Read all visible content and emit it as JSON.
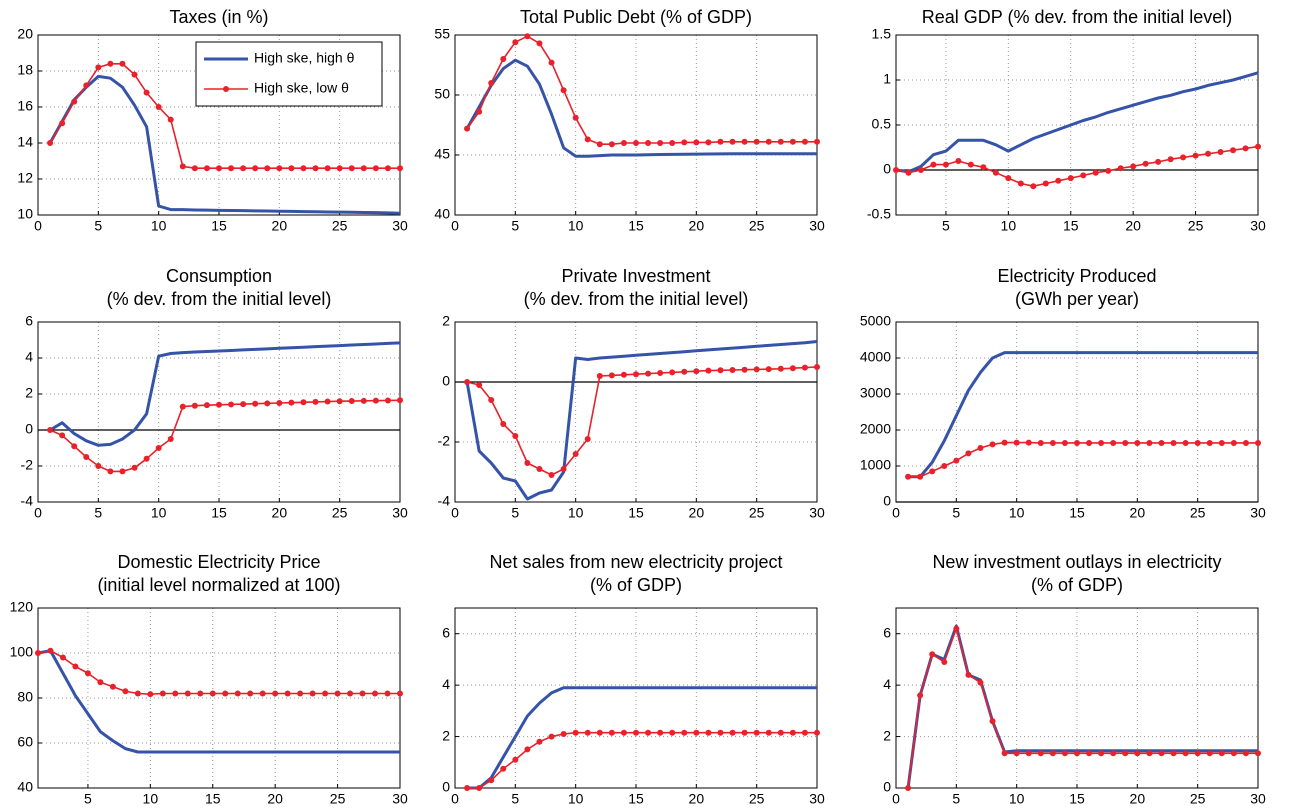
{
  "chart_data": [
    {
      "type": "line",
      "title": "Taxes (in %)",
      "xlim": [
        0,
        30
      ],
      "xticks": [
        0,
        5,
        10,
        15,
        20,
        25,
        30
      ],
      "ylim": [
        10,
        20
      ],
      "yticks": [
        10,
        12,
        14,
        16,
        18,
        20
      ],
      "grid": true,
      "legend": "upper right",
      "x": [
        1,
        2,
        3,
        4,
        5,
        6,
        7,
        8,
        9,
        10,
        11,
        12,
        13,
        14,
        15,
        16,
        17,
        18,
        19,
        20,
        21,
        22,
        23,
        24,
        25,
        26,
        27,
        28,
        29,
        30
      ],
      "series": [
        {
          "name": "High ske, high θ",
          "color": "#3553a8",
          "values": [
            14,
            15.2,
            16.4,
            17.1,
            17.7,
            17.6,
            17.1,
            16.1,
            14.9,
            10.5,
            10.3,
            10.3,
            10.28,
            10.27,
            10.26,
            10.25,
            10.24,
            10.23,
            10.22,
            10.21,
            10.2,
            10.19,
            10.18,
            10.17,
            10.16,
            10.15,
            10.14,
            10.13,
            10.12,
            10.1
          ]
        },
        {
          "name": "High ske, low θ",
          "color": "#e8212a",
          "values": [
            14,
            15.1,
            16.3,
            17.2,
            18.2,
            18.4,
            18.4,
            17.8,
            16.8,
            16.0,
            15.3,
            12.7,
            12.6,
            12.6,
            12.6,
            12.6,
            12.6,
            12.6,
            12.6,
            12.6,
            12.6,
            12.6,
            12.6,
            12.6,
            12.6,
            12.6,
            12.6,
            12.6,
            12.6,
            12.6
          ]
        }
      ]
    },
    {
      "type": "line",
      "title": "Total Public Debt (% of GDP)",
      "xlim": [
        0,
        30
      ],
      "xticks": [
        0,
        5,
        10,
        15,
        20,
        25,
        30
      ],
      "ylim": [
        40,
        55
      ],
      "yticks": [
        40,
        45,
        50,
        55
      ],
      "grid": true,
      "x": [
        1,
        2,
        3,
        4,
        5,
        6,
        7,
        8,
        9,
        10,
        11,
        12,
        13,
        14,
        15,
        16,
        17,
        18,
        19,
        20,
        21,
        22,
        23,
        24,
        25,
        26,
        27,
        28,
        29,
        30
      ],
      "series": [
        {
          "color": "#3553a8",
          "values": [
            47.2,
            49,
            50.8,
            52.2,
            52.9,
            52.4,
            50.9,
            48.4,
            45.6,
            44.9,
            44.9,
            44.95,
            45,
            45,
            45,
            45.02,
            45.04,
            45.05,
            45.06,
            45.07,
            45.08,
            45.09,
            45.1,
            45.1,
            45.1,
            45.1,
            45.1,
            45.1,
            45.1,
            45.1
          ]
        },
        {
          "color": "#e8212a",
          "values": [
            47.2,
            48.6,
            51,
            53,
            54.4,
            54.9,
            54.3,
            52.7,
            50.4,
            48.1,
            46.3,
            45.9,
            45.9,
            46,
            46,
            46,
            46,
            46,
            46.05,
            46.05,
            46.05,
            46.1,
            46.1,
            46.1,
            46.1,
            46.1,
            46.1,
            46.1,
            46.1,
            46.1
          ]
        }
      ]
    },
    {
      "type": "line",
      "title": "Real GDP (% dev. from the initial level)",
      "xlim": [
        1,
        30
      ],
      "xticks": [
        5,
        10,
        15,
        20,
        25,
        30
      ],
      "ylim": [
        -0.5,
        1.5
      ],
      "yticks": [
        -0.5,
        0,
        0.5,
        1,
        1.5
      ],
      "grid": true,
      "zero_line": true,
      "x": [
        1,
        2,
        3,
        4,
        5,
        6,
        7,
        8,
        9,
        10,
        11,
        12,
        13,
        14,
        15,
        16,
        17,
        18,
        19,
        20,
        21,
        22,
        23,
        24,
        25,
        26,
        27,
        28,
        29,
        30
      ],
      "series": [
        {
          "color": "#3553a8",
          "values": [
            0,
            -0.02,
            0.04,
            0.17,
            0.21,
            0.33,
            0.33,
            0.33,
            0.28,
            0.21,
            0.28,
            0.35,
            0.4,
            0.45,
            0.5,
            0.55,
            0.59,
            0.64,
            0.68,
            0.72,
            0.76,
            0.8,
            0.83,
            0.87,
            0.9,
            0.94,
            0.97,
            1.0,
            1.04,
            1.08
          ]
        },
        {
          "color": "#e8212a",
          "values": [
            0,
            -0.03,
            0,
            0.06,
            0.06,
            0.1,
            0.06,
            0.03,
            -0.03,
            -0.09,
            -0.15,
            -0.18,
            -0.15,
            -0.12,
            -0.09,
            -0.06,
            -0.03,
            -0.01,
            0.02,
            0.04,
            0.07,
            0.09,
            0.12,
            0.14,
            0.16,
            0.18,
            0.2,
            0.22,
            0.24,
            0.26
          ]
        }
      ]
    },
    {
      "type": "line",
      "title": "Consumption",
      "subtitle": "(% dev. from the initial level)",
      "xlim": [
        0,
        30
      ],
      "xticks": [
        0,
        5,
        10,
        15,
        20,
        25,
        30
      ],
      "ylim": [
        -4,
        6
      ],
      "yticks": [
        -4,
        -2,
        0,
        2,
        4,
        6
      ],
      "grid": true,
      "zero_line": true,
      "x": [
        1,
        2,
        3,
        4,
        5,
        6,
        7,
        8,
        9,
        10,
        11,
        12,
        13,
        14,
        15,
        16,
        17,
        18,
        19,
        20,
        21,
        22,
        23,
        24,
        25,
        26,
        27,
        28,
        29,
        30
      ],
      "series": [
        {
          "color": "#3553a8",
          "values": [
            0,
            0.4,
            -0.2,
            -0.6,
            -0.85,
            -0.8,
            -0.5,
            0,
            0.9,
            4.1,
            4.25,
            4.3,
            4.33,
            4.36,
            4.39,
            4.42,
            4.45,
            4.48,
            4.51,
            4.54,
            4.57,
            4.6,
            4.63,
            4.66,
            4.69,
            4.72,
            4.75,
            4.78,
            4.81,
            4.84
          ]
        },
        {
          "color": "#e8212a",
          "values": [
            0,
            -0.3,
            -0.9,
            -1.5,
            -2.0,
            -2.3,
            -2.3,
            -2.1,
            -1.6,
            -1.0,
            -0.5,
            1.3,
            1.35,
            1.38,
            1.4,
            1.42,
            1.44,
            1.46,
            1.48,
            1.5,
            1.52,
            1.54,
            1.56,
            1.58,
            1.6,
            1.61,
            1.62,
            1.63,
            1.64,
            1.65
          ]
        }
      ]
    },
    {
      "type": "line",
      "title": "Private Investment",
      "subtitle": "(% dev. from the initial level)",
      "xlim": [
        0,
        30
      ],
      "xticks": [
        0,
        5,
        10,
        15,
        20,
        25,
        30
      ],
      "ylim": [
        -4,
        2
      ],
      "yticks": [
        -4,
        -2,
        0,
        2
      ],
      "grid": true,
      "zero_line": true,
      "x": [
        1,
        2,
        3,
        4,
        5,
        6,
        7,
        8,
        9,
        10,
        11,
        12,
        13,
        14,
        15,
        16,
        17,
        18,
        19,
        20,
        21,
        22,
        23,
        24,
        25,
        26,
        27,
        28,
        29,
        30
      ],
      "series": [
        {
          "color": "#3553a8",
          "values": [
            0,
            -2.3,
            -2.7,
            -3.2,
            -3.3,
            -3.9,
            -3.7,
            -3.6,
            -3.0,
            0.8,
            0.75,
            0.8,
            0.83,
            0.86,
            0.89,
            0.92,
            0.95,
            0.98,
            1.01,
            1.04,
            1.07,
            1.1,
            1.13,
            1.16,
            1.19,
            1.22,
            1.25,
            1.28,
            1.31,
            1.35
          ]
        },
        {
          "color": "#e8212a",
          "values": [
            0,
            -0.1,
            -0.6,
            -1.4,
            -1.8,
            -2.7,
            -2.9,
            -3.1,
            -2.9,
            -2.4,
            -1.9,
            0.2,
            0.22,
            0.24,
            0.26,
            0.28,
            0.3,
            0.32,
            0.34,
            0.36,
            0.38,
            0.39,
            0.4,
            0.41,
            0.42,
            0.43,
            0.44,
            0.46,
            0.48,
            0.5
          ]
        }
      ]
    },
    {
      "type": "line",
      "title": "Electricity Produced",
      "subtitle": "(GWh per year)",
      "xlim": [
        0,
        30
      ],
      "xticks": [
        0,
        5,
        10,
        15,
        20,
        25,
        30
      ],
      "ylim": [
        0,
        5000
      ],
      "yticks": [
        0,
        1000,
        2000,
        3000,
        4000,
        5000
      ],
      "grid": true,
      "zero_line": true,
      "x": [
        1,
        2,
        3,
        4,
        5,
        6,
        7,
        8,
        9,
        10,
        11,
        12,
        13,
        14,
        15,
        16,
        17,
        18,
        19,
        20,
        21,
        22,
        23,
        24,
        25,
        26,
        27,
        28,
        29,
        30
      ],
      "series": [
        {
          "color": "#3553a8",
          "values": [
            700,
            700,
            1100,
            1700,
            2400,
            3100,
            3600,
            4000,
            4150,
            4150,
            4150,
            4150,
            4150,
            4150,
            4150,
            4150,
            4150,
            4150,
            4150,
            4150,
            4150,
            4150,
            4150,
            4150,
            4150,
            4150,
            4150,
            4150,
            4150,
            4150
          ]
        },
        {
          "color": "#e8212a",
          "values": [
            700,
            700,
            850,
            1000,
            1150,
            1350,
            1500,
            1600,
            1650,
            1650,
            1650,
            1640,
            1640,
            1640,
            1640,
            1640,
            1640,
            1640,
            1640,
            1640,
            1640,
            1640,
            1640,
            1640,
            1640,
            1640,
            1640,
            1640,
            1640,
            1640
          ]
        }
      ]
    },
    {
      "type": "line",
      "title": "Domestic Electricity Price",
      "subtitle": "(initial level normalized at 100)",
      "xlim": [
        1,
        30
      ],
      "xticks": [
        5,
        10,
        15,
        20,
        25,
        30
      ],
      "ylim": [
        40,
        120
      ],
      "yticks": [
        40,
        60,
        80,
        100,
        120
      ],
      "grid": true,
      "x": [
        1,
        2,
        3,
        4,
        5,
        6,
        7,
        8,
        9,
        10,
        11,
        12,
        13,
        14,
        15,
        16,
        17,
        18,
        19,
        20,
        21,
        22,
        23,
        24,
        25,
        26,
        27,
        28,
        29,
        30
      ],
      "series": [
        {
          "color": "#3553a8",
          "values": [
            100,
            101,
            91,
            81,
            73,
            65,
            61,
            57.5,
            56,
            56,
            56,
            56,
            56,
            56,
            56,
            56,
            56,
            56,
            56,
            56,
            56,
            56,
            56,
            56,
            56,
            56,
            56,
            56,
            56,
            56
          ]
        },
        {
          "color": "#e8212a",
          "values": [
            100,
            101,
            98,
            94,
            91,
            87,
            85,
            83,
            82,
            81.7,
            82,
            82,
            82,
            82,
            82,
            82,
            82,
            82,
            82,
            82,
            82,
            82,
            82,
            82,
            82,
            82,
            82,
            82,
            82,
            82
          ]
        }
      ]
    },
    {
      "type": "line",
      "title": "Net sales from new electricity project",
      "subtitle": "(% of GDP)",
      "xlim": [
        0,
        30
      ],
      "xticks": [
        0,
        5,
        10,
        15,
        20,
        25,
        30
      ],
      "ylim": [
        0,
        7
      ],
      "yticks": [
        0,
        2,
        4,
        6
      ],
      "grid": true,
      "x": [
        1,
        2,
        3,
        4,
        5,
        6,
        7,
        8,
        9,
        10,
        11,
        12,
        13,
        14,
        15,
        16,
        17,
        18,
        19,
        20,
        21,
        22,
        23,
        24,
        25,
        26,
        27,
        28,
        29,
        30
      ],
      "series": [
        {
          "color": "#3553a8",
          "values": [
            0,
            0,
            0.4,
            1.2,
            2,
            2.8,
            3.3,
            3.7,
            3.9,
            3.9,
            3.9,
            3.9,
            3.9,
            3.9,
            3.9,
            3.9,
            3.9,
            3.9,
            3.9,
            3.9,
            3.9,
            3.9,
            3.9,
            3.9,
            3.9,
            3.9,
            3.9,
            3.9,
            3.9,
            3.9
          ]
        },
        {
          "color": "#e8212a",
          "values": [
            0,
            0,
            0.3,
            0.75,
            1.1,
            1.5,
            1.8,
            2,
            2.1,
            2.15,
            2.15,
            2.15,
            2.15,
            2.15,
            2.15,
            2.15,
            2.15,
            2.15,
            2.15,
            2.15,
            2.15,
            2.15,
            2.15,
            2.15,
            2.15,
            2.15,
            2.15,
            2.15,
            2.15,
            2.15
          ]
        }
      ]
    },
    {
      "type": "line",
      "title": "New investment outlays in electricity",
      "subtitle": "(% of GDP)",
      "xlim": [
        0,
        30
      ],
      "xticks": [
        0,
        5,
        10,
        15,
        20,
        25,
        30
      ],
      "ylim": [
        0,
        7
      ],
      "yticks": [
        0,
        2,
        4,
        6
      ],
      "grid": true,
      "x": [
        1,
        2,
        3,
        4,
        5,
        6,
        7,
        8,
        9,
        10,
        11,
        12,
        13,
        14,
        15,
        16,
        17,
        18,
        19,
        20,
        21,
        22,
        23,
        24,
        25,
        26,
        27,
        28,
        29,
        30
      ],
      "series": [
        {
          "color": "#3553a8",
          "values": [
            0,
            3.6,
            5.2,
            5,
            6.3,
            4.4,
            4.2,
            2.6,
            1.4,
            1.45,
            1.45,
            1.45,
            1.45,
            1.45,
            1.45,
            1.45,
            1.45,
            1.45,
            1.45,
            1.45,
            1.45,
            1.45,
            1.45,
            1.45,
            1.45,
            1.45,
            1.45,
            1.45,
            1.45,
            1.45
          ]
        },
        {
          "color": "#e8212a",
          "values": [
            0,
            3.6,
            5.2,
            4.9,
            6.2,
            4.4,
            4.1,
            2.6,
            1.35,
            1.35,
            1.35,
            1.35,
            1.35,
            1.35,
            1.35,
            1.35,
            1.35,
            1.35,
            1.35,
            1.35,
            1.35,
            1.35,
            1.35,
            1.35,
            1.35,
            1.35,
            1.35,
            1.35,
            1.35,
            1.35
          ]
        }
      ]
    }
  ]
}
